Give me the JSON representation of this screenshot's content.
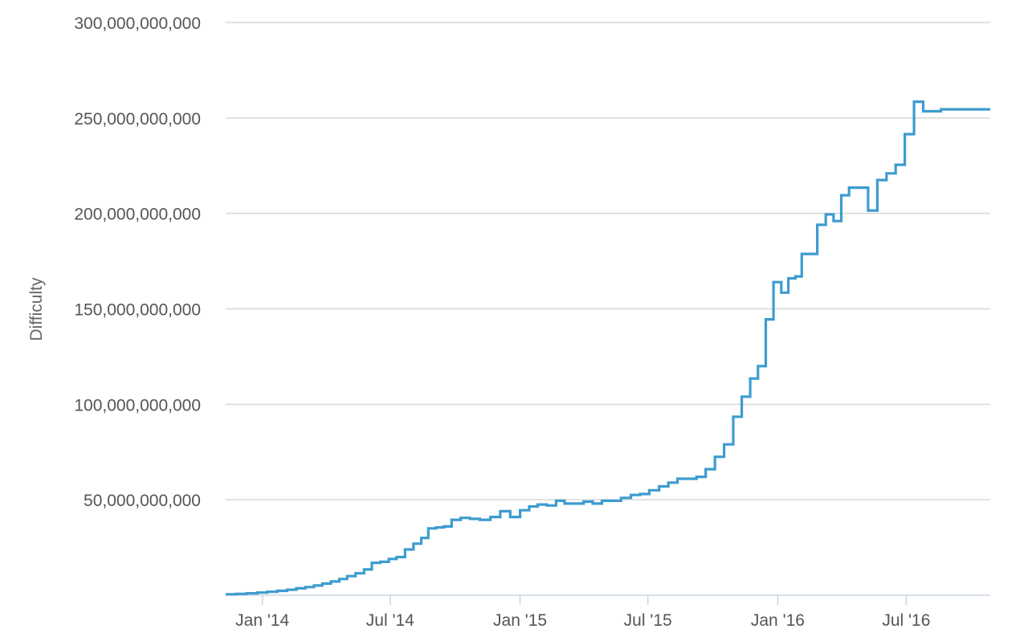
{
  "colors": {
    "series": "#3d9ccf",
    "grid": "#d8d8d8",
    "axis": "#c9d6e3",
    "text": "#555555"
  },
  "chart_data": {
    "type": "line",
    "title": "",
    "xlabel": "",
    "ylabel": "Difficulty",
    "ylim": [
      0,
      300000000000
    ],
    "xlim": [
      "2013-11-10",
      "2016-10-28"
    ],
    "grid": true,
    "legend": "none",
    "y_ticks": [
      {
        "value": 50000000000,
        "label": "50,000,000,000"
      },
      {
        "value": 100000000000,
        "label": "100,000,000,000"
      },
      {
        "value": 150000000000,
        "label": "150,000,000,000"
      },
      {
        "value": 200000000000,
        "label": "200,000,000,000"
      },
      {
        "value": 250000000000,
        "label": "250,000,000,000"
      },
      {
        "value": 300000000000,
        "label": "300,000,000,000"
      }
    ],
    "x_ticks": [
      {
        "date": "2014-01-01",
        "label": "Jan '14"
      },
      {
        "date": "2014-07-01",
        "label": "Jul '14"
      },
      {
        "date": "2015-01-01",
        "label": "Jan '15"
      },
      {
        "date": "2015-07-01",
        "label": "Jul '15"
      },
      {
        "date": "2016-01-01",
        "label": "Jan '16"
      },
      {
        "date": "2016-07-01",
        "label": "Jul '16"
      }
    ],
    "series": [
      {
        "step": true,
        "x": [
          "2013-11-10",
          "2013-11-25",
          "2013-12-10",
          "2013-12-25",
          "2014-01-08",
          "2014-01-22",
          "2014-02-05",
          "2014-02-18",
          "2014-03-03",
          "2014-03-15",
          "2014-03-27",
          "2014-04-08",
          "2014-04-20",
          "2014-05-01",
          "2014-05-13",
          "2014-05-25",
          "2014-06-05",
          "2014-06-17",
          "2014-06-29",
          "2014-07-10",
          "2014-07-22",
          "2014-08-03",
          "2014-08-14",
          "2014-08-24",
          "2014-09-04",
          "2014-09-15",
          "2014-09-26",
          "2014-10-09",
          "2014-10-22",
          "2014-11-05",
          "2014-11-20",
          "2014-12-04",
          "2014-12-18",
          "2015-01-01",
          "2015-01-14",
          "2015-01-26",
          "2015-02-08",
          "2015-02-21",
          "2015-03-05",
          "2015-03-18",
          "2015-04-01",
          "2015-04-14",
          "2015-04-27",
          "2015-05-11",
          "2015-05-24",
          "2015-06-07",
          "2015-06-20",
          "2015-07-03",
          "2015-07-17",
          "2015-07-30",
          "2015-08-12",
          "2015-08-26",
          "2015-09-08",
          "2015-09-21",
          "2015-10-04",
          "2015-10-17",
          "2015-10-30",
          "2015-11-11",
          "2015-11-23",
          "2015-12-04",
          "2015-12-15",
          "2015-12-26",
          "2016-01-06",
          "2016-01-16",
          "2016-01-26",
          "2016-02-04",
          "2016-02-14",
          "2016-02-26",
          "2016-03-09",
          "2016-03-20",
          "2016-03-31",
          "2016-04-11",
          "2016-04-24",
          "2016-05-08",
          "2016-05-21",
          "2016-06-03",
          "2016-06-16",
          "2016-06-29",
          "2016-07-12",
          "2016-07-25",
          "2016-08-07",
          "2016-08-19",
          "2016-08-31",
          "2016-09-12",
          "2016-09-24",
          "2016-10-06",
          "2016-10-18",
          "2016-10-28"
        ],
        "values": [
          500000000,
          700000000,
          1000000000,
          1400000000,
          1800000000,
          2300000000,
          2900000000,
          3600000000,
          4300000000,
          5100000000,
          6100000000,
          7200000000,
          8500000000,
          10000000000,
          11500000000,
          13500000000,
          17000000000,
          17500000000,
          19000000000,
          20000000000,
          24000000000,
          27000000000,
          30000000000,
          35000000000,
          35500000000,
          36000000000,
          39500000000,
          40500000000,
          40000000000,
          39500000000,
          41000000000,
          44000000000,
          41000000000,
          44500000000,
          46500000000,
          47500000000,
          47000000000,
          49500000000,
          48000000000,
          48000000000,
          49000000000,
          48000000000,
          49500000000,
          49500000000,
          51000000000,
          52500000000,
          53000000000,
          55000000000,
          57000000000,
          59000000000,
          61000000000,
          61000000000,
          62000000000,
          66000000000,
          72500000000,
          79000000000,
          93500000000,
          104000000000,
          113500000000,
          120000000000,
          144500000000,
          164000000000,
          158500000000,
          166000000000,
          167000000000,
          178800000000,
          178800000000,
          194000000000,
          199500000000,
          196000000000,
          209500000000,
          213500000000,
          213500000000,
          201500000000,
          217500000000,
          221000000000,
          225500000000,
          241500000000,
          258500000000,
          253500000000,
          253500000000,
          254500000000,
          254500000000,
          254500000000,
          254500000000,
          254500000000,
          254500000000,
          254500000000
        ]
      }
    ]
  }
}
